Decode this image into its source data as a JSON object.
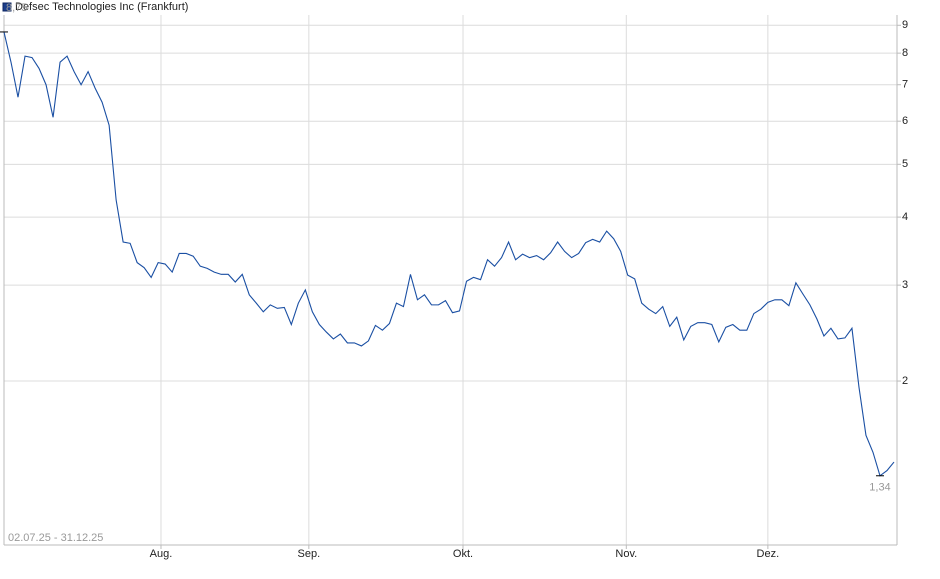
{
  "chart_data": {
    "type": "line",
    "title": "Defsec Technologies Inc (Frankfurt)",
    "subtitle": "02.07.25 - 31.12.25",
    "log_scale": true,
    "grid": true,
    "xlim": [
      0,
      127
    ],
    "xticks": [
      {
        "value": 22.4,
        "label": "Aug."
      },
      {
        "value": 43.5,
        "label": "Sep."
      },
      {
        "value": 65.5,
        "label": "Okt."
      },
      {
        "value": 88.8,
        "label": "Nov."
      },
      {
        "value": 109,
        "label": "Dez."
      }
    ],
    "ylim": [
      1,
      9.4
    ],
    "yticks": [
      2,
      3,
      4,
      5,
      6,
      7,
      8,
      9
    ],
    "series": [
      {
        "name": "Defsec Technologies Inc (Frankfurt)",
        "color": "#1a4fa3",
        "values": [
          8.75,
          7.7,
          6.64,
          7.9,
          7.85,
          7.5,
          7.0,
          6.1,
          7.7,
          7.9,
          7.4,
          7.0,
          7.4,
          6.9,
          6.5,
          5.9,
          4.3,
          3.6,
          3.58,
          3.3,
          3.23,
          3.1,
          3.3,
          3.28,
          3.17,
          3.43,
          3.43,
          3.39,
          3.25,
          3.22,
          3.17,
          3.14,
          3.14,
          3.04,
          3.14,
          2.88,
          2.78,
          2.68,
          2.76,
          2.72,
          2.73,
          2.54,
          2.78,
          2.94,
          2.68,
          2.54,
          2.46,
          2.39,
          2.44,
          2.35,
          2.35,
          2.32,
          2.37,
          2.53,
          2.48,
          2.55,
          2.78,
          2.74,
          3.14,
          2.82,
          2.88,
          2.76,
          2.76,
          2.81,
          2.67,
          2.69,
          3.05,
          3.1,
          3.07,
          3.34,
          3.25,
          3.37,
          3.6,
          3.34,
          3.42,
          3.37,
          3.4,
          3.34,
          3.44,
          3.6,
          3.46,
          3.37,
          3.43,
          3.59,
          3.64,
          3.6,
          3.77,
          3.65,
          3.46,
          3.13,
          3.08,
          2.78,
          2.71,
          2.66,
          2.74,
          2.52,
          2.62,
          2.38,
          2.52,
          2.56,
          2.56,
          2.54,
          2.36,
          2.51,
          2.54,
          2.48,
          2.48,
          2.66,
          2.71,
          2.79,
          2.82,
          2.82,
          2.75,
          3.03,
          2.89,
          2.76,
          2.6,
          2.42,
          2.5,
          2.39,
          2.4,
          2.5,
          1.95,
          1.59,
          1.48,
          1.34,
          1.37,
          1.42
        ],
        "value_labels": [
          "8,75",
          null,
          null,
          null,
          null,
          null,
          null,
          null,
          null,
          null,
          null,
          null,
          null,
          null,
          null,
          null,
          null,
          null,
          null,
          null,
          null,
          null,
          null,
          null,
          null,
          null,
          null,
          null,
          null,
          null,
          null,
          null,
          null,
          null,
          null,
          null,
          null,
          null,
          null,
          null,
          null,
          null,
          null,
          null,
          null,
          null,
          null,
          null,
          null,
          null,
          null,
          null,
          null,
          null,
          null,
          null,
          null,
          null,
          null,
          null,
          null,
          null,
          null,
          null,
          null,
          null,
          null,
          null,
          null,
          null,
          null,
          null,
          null,
          null,
          null,
          null,
          null,
          null,
          null,
          null,
          null,
          null,
          null,
          null,
          null,
          null,
          null,
          null,
          null,
          null,
          null,
          null,
          null,
          null,
          null,
          null,
          null,
          null,
          null,
          null,
          null,
          null,
          null,
          null,
          null,
          null,
          null,
          null,
          null,
          null,
          null,
          null,
          null,
          null,
          null,
          null,
          null,
          null,
          null,
          null,
          null,
          null,
          null,
          null,
          null,
          "1,34",
          null,
          null
        ]
      }
    ]
  }
}
